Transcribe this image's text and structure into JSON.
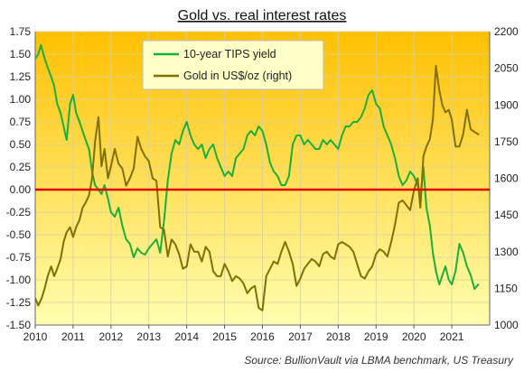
{
  "chart_data": {
    "type": "line",
    "title": "Gold vs. real interest rates",
    "source": "Source: BullionVault via LBMA benchmark, US Treasury",
    "x_range": [
      2010,
      2022
    ],
    "x_ticks": [
      "2010",
      "2011",
      "2012",
      "2013",
      "2014",
      "2015",
      "2016",
      "2017",
      "2018",
      "2019",
      "2020",
      "2021"
    ],
    "y_left": {
      "range": [
        -1.5,
        1.75
      ],
      "ticks": [
        "1.75",
        "1.50",
        "1.25",
        "1.00",
        "0.75",
        "0.50",
        "0.25",
        "0.00",
        "-0.25",
        "-0.50",
        "-0.75",
        "-1.00",
        "-1.25",
        "-1.50"
      ]
    },
    "y_right": {
      "range": [
        1000,
        2200
      ],
      "ticks": [
        "2200",
        "2050",
        "1900",
        "1750",
        "1600",
        "1450",
        "1300",
        "1150",
        "1000"
      ]
    },
    "zero_line": 0.0,
    "grid": true,
    "legend_position": "top-center",
    "background": {
      "top": "#FFC000",
      "bottom": "#FFFFB0"
    },
    "series": [
      {
        "name": "10-year TIPS yield",
        "axis": "left",
        "color": "#1AAF3A",
        "x": [
          2010.0,
          2010.08,
          2010.15,
          2010.25,
          2010.33,
          2010.42,
          2010.5,
          2010.58,
          2010.67,
          2010.75,
          2010.83,
          2010.92,
          2011.0,
          2011.08,
          2011.17,
          2011.25,
          2011.33,
          2011.42,
          2011.5,
          2011.58,
          2011.67,
          2011.75,
          2011.83,
          2011.92,
          2012.0,
          2012.1,
          2012.2,
          2012.3,
          2012.4,
          2012.5,
          2012.6,
          2012.7,
          2012.8,
          2012.9,
          2013.0,
          2013.1,
          2013.2,
          2013.3,
          2013.4,
          2013.5,
          2013.6,
          2013.7,
          2013.8,
          2013.9,
          2014.0,
          2014.1,
          2014.2,
          2014.3,
          2014.4,
          2014.5,
          2014.6,
          2014.7,
          2014.8,
          2014.9,
          2015.0,
          2015.1,
          2015.2,
          2015.3,
          2015.4,
          2015.5,
          2015.6,
          2015.7,
          2015.8,
          2015.9,
          2016.0,
          2016.1,
          2016.2,
          2016.3,
          2016.4,
          2016.5,
          2016.6,
          2016.7,
          2016.8,
          2016.9,
          2017.0,
          2017.1,
          2017.2,
          2017.3,
          2017.4,
          2017.5,
          2017.6,
          2017.7,
          2017.8,
          2017.9,
          2018.0,
          2018.1,
          2018.2,
          2018.3,
          2018.4,
          2018.5,
          2018.6,
          2018.7,
          2018.8,
          2018.9,
          2019.0,
          2019.1,
          2019.2,
          2019.3,
          2019.4,
          2019.5,
          2019.6,
          2019.7,
          2019.8,
          2019.9,
          2020.0,
          2020.1,
          2020.17,
          2020.25,
          2020.33,
          2020.42,
          2020.5,
          2020.58,
          2020.67,
          2020.75,
          2020.83,
          2020.92,
          2021.0,
          2021.1,
          2021.2,
          2021.3,
          2021.4,
          2021.5,
          2021.6,
          2021.7
        ],
        "values": [
          1.45,
          1.5,
          1.6,
          1.45,
          1.35,
          1.25,
          1.15,
          0.95,
          0.85,
          0.7,
          0.55,
          0.95,
          1.05,
          0.85,
          0.75,
          0.65,
          0.55,
          0.45,
          0.2,
          0.05,
          0.0,
          -0.05,
          0.05,
          -0.1,
          -0.25,
          -0.3,
          -0.2,
          -0.4,
          -0.55,
          -0.6,
          -0.75,
          -0.65,
          -0.7,
          -0.72,
          -0.65,
          -0.6,
          -0.55,
          -0.7,
          -0.35,
          0.1,
          0.4,
          0.55,
          0.5,
          0.65,
          0.75,
          0.6,
          0.5,
          0.45,
          0.5,
          0.35,
          0.45,
          0.5,
          0.35,
          0.25,
          0.15,
          0.2,
          0.15,
          0.35,
          0.4,
          0.45,
          0.6,
          0.65,
          0.6,
          0.7,
          0.65,
          0.5,
          0.3,
          0.2,
          0.15,
          0.05,
          0.05,
          0.15,
          0.5,
          0.6,
          0.6,
          0.5,
          0.55,
          0.5,
          0.45,
          0.45,
          0.55,
          0.5,
          0.55,
          0.5,
          0.45,
          0.6,
          0.7,
          0.7,
          0.75,
          0.75,
          0.8,
          0.9,
          1.05,
          1.1,
          0.95,
          0.9,
          0.7,
          0.6,
          0.5,
          0.35,
          0.15,
          0.05,
          0.1,
          0.2,
          0.15,
          0.05,
          -0.1,
          0.25,
          -0.2,
          -0.4,
          -0.7,
          -0.9,
          -1.05,
          -0.95,
          -0.85,
          -1.0,
          -1.05,
          -0.9,
          -0.6,
          -0.7,
          -0.85,
          -0.95,
          -1.1,
          -1.05
        ]
      },
      {
        "name": "Gold in US$/oz (right)",
        "axis": "right",
        "color": "#807000",
        "x": [
          2010.0,
          2010.08,
          2010.17,
          2010.25,
          2010.33,
          2010.42,
          2010.5,
          2010.58,
          2010.67,
          2010.75,
          2010.83,
          2010.92,
          2011.0,
          2011.08,
          2011.17,
          2011.25,
          2011.33,
          2011.42,
          2011.5,
          2011.58,
          2011.67,
          2011.75,
          2011.83,
          2011.92,
          2012.0,
          2012.1,
          2012.2,
          2012.3,
          2012.4,
          2012.5,
          2012.6,
          2012.7,
          2012.8,
          2012.9,
          2013.0,
          2013.1,
          2013.2,
          2013.3,
          2013.4,
          2013.5,
          2013.6,
          2013.7,
          2013.8,
          2013.9,
          2014.0,
          2014.1,
          2014.2,
          2014.3,
          2014.4,
          2014.5,
          2014.6,
          2014.7,
          2014.8,
          2014.9,
          2015.0,
          2015.1,
          2015.2,
          2015.3,
          2015.4,
          2015.5,
          2015.6,
          2015.7,
          2015.8,
          2015.9,
          2016.0,
          2016.1,
          2016.2,
          2016.3,
          2016.4,
          2016.5,
          2016.6,
          2016.7,
          2016.8,
          2016.9,
          2017.0,
          2017.1,
          2017.2,
          2017.3,
          2017.4,
          2017.5,
          2017.6,
          2017.7,
          2017.8,
          2017.9,
          2018.0,
          2018.1,
          2018.2,
          2018.3,
          2018.4,
          2018.5,
          2018.6,
          2018.7,
          2018.8,
          2018.9,
          2019.0,
          2019.1,
          2019.2,
          2019.3,
          2019.4,
          2019.5,
          2019.6,
          2019.7,
          2019.8,
          2019.9,
          2020.0,
          2020.1,
          2020.17,
          2020.25,
          2020.33,
          2020.42,
          2020.5,
          2020.58,
          2020.67,
          2020.75,
          2020.83,
          2020.92,
          2021.0,
          2021.1,
          2021.2,
          2021.3,
          2021.4,
          2021.5,
          2021.6,
          2021.7
        ],
        "values": [
          1110,
          1080,
          1110,
          1150,
          1200,
          1240,
          1200,
          1230,
          1270,
          1340,
          1380,
          1400,
          1360,
          1400,
          1430,
          1480,
          1500,
          1530,
          1600,
          1750,
          1850,
          1650,
          1720,
          1600,
          1650,
          1720,
          1660,
          1640,
          1570,
          1600,
          1640,
          1770,
          1720,
          1690,
          1670,
          1600,
          1590,
          1400,
          1390,
          1280,
          1350,
          1330,
          1290,
          1230,
          1240,
          1330,
          1300,
          1300,
          1260,
          1320,
          1300,
          1220,
          1200,
          1200,
          1250,
          1220,
          1180,
          1200,
          1190,
          1170,
          1130,
          1150,
          1160,
          1070,
          1060,
          1200,
          1230,
          1260,
          1250,
          1300,
          1340,
          1300,
          1250,
          1160,
          1190,
          1230,
          1250,
          1270,
          1260,
          1240,
          1290,
          1300,
          1280,
          1270,
          1330,
          1340,
          1330,
          1320,
          1300,
          1250,
          1200,
          1190,
          1220,
          1240,
          1290,
          1310,
          1300,
          1280,
          1340,
          1410,
          1500,
          1510,
          1490,
          1470,
          1550,
          1600,
          1480,
          1690,
          1730,
          1760,
          1840,
          2060,
          1960,
          1900,
          1870,
          1880,
          1840,
          1730,
          1730,
          1780,
          1880,
          1800,
          1790,
          1780
        ]
      }
    ]
  }
}
